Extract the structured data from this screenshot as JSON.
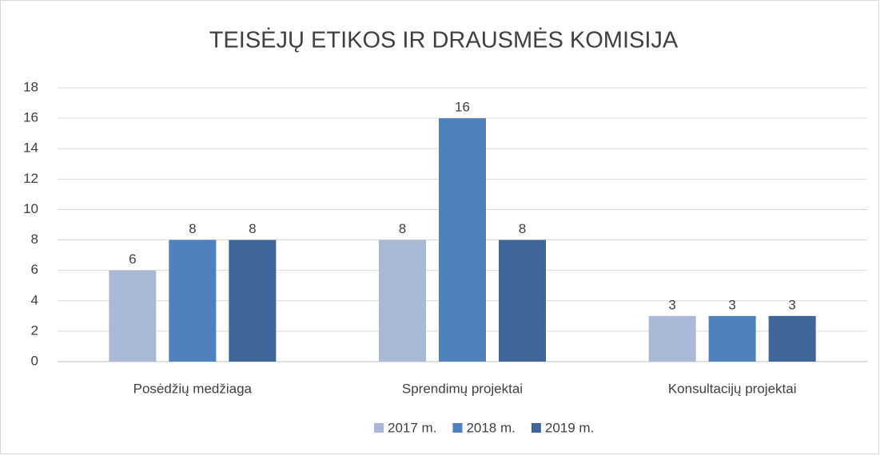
{
  "chart_data": {
    "type": "bar",
    "title": "TEISĖJŲ ETIKOS IR DRAUSMĖS KOMISIJA",
    "categories": [
      "Posėdžių medžiaga",
      "Sprendimų projektai",
      "Konsultacijų projektai"
    ],
    "series": [
      {
        "name": "2017 m.",
        "color": "#abb9d7",
        "values": [
          6,
          8,
          3
        ]
      },
      {
        "name": "2018 m.",
        "color": "#4f81bd",
        "values": [
          8,
          16,
          3
        ]
      },
      {
        "name": "2019 m.",
        "color": "#3e6699",
        "values": [
          8,
          8,
          3
        ]
      }
    ],
    "ylim": [
      0,
      18
    ],
    "yticks": [
      0,
      2,
      4,
      6,
      8,
      10,
      12,
      14,
      16,
      18
    ],
    "grid": true,
    "legend": "bottom",
    "data_labels": true
  }
}
